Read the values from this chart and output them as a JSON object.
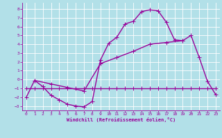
{
  "xlabel": "Windchill (Refroidissement éolien,°C)",
  "bg_color": "#b2e0e8",
  "grid_color": "#ffffff",
  "line_color": "#990099",
  "xlim": [
    -0.5,
    23.5
  ],
  "ylim": [
    -3.5,
    8.7
  ],
  "xticks": [
    0,
    1,
    2,
    3,
    4,
    5,
    6,
    7,
    8,
    9,
    10,
    11,
    12,
    13,
    14,
    15,
    16,
    17,
    18,
    19,
    20,
    21,
    22,
    23
  ],
  "yticks": [
    -3,
    -2,
    -1,
    0,
    1,
    2,
    3,
    4,
    5,
    6,
    7,
    8
  ],
  "curve1_x": [
    0,
    1,
    2,
    3,
    4,
    5,
    6,
    7,
    8,
    9,
    10,
    11,
    12,
    13,
    14,
    15,
    16,
    17,
    18,
    19,
    20,
    21,
    22,
    23
  ],
  "curve1_y": [
    -2.0,
    -0.1,
    -0.8,
    -1.8,
    -2.3,
    -2.8,
    -3.0,
    -3.1,
    -2.5,
    2.2,
    4.1,
    4.8,
    6.3,
    6.6,
    7.7,
    7.9,
    7.8,
    6.5,
    4.5,
    4.4,
    5.0,
    2.5,
    -0.2,
    -1.7
  ],
  "flat_line_x": [
    0,
    1,
    2,
    3,
    4,
    5,
    6,
    7,
    8,
    9,
    10,
    11,
    12,
    13,
    14,
    15,
    16,
    17,
    18,
    19,
    20,
    21,
    22,
    23
  ],
  "flat_line_y": [
    -1.0,
    -1.0,
    -1.0,
    -1.0,
    -1.0,
    -1.0,
    -1.0,
    -1.0,
    -1.0,
    -1.0,
    -1.0,
    -1.0,
    -1.0,
    -1.0,
    -1.0,
    -1.0,
    -1.0,
    -1.0,
    -1.0,
    -1.0,
    -1.0,
    -1.0,
    -1.0,
    -1.0
  ],
  "diag_line_x": [
    1,
    3,
    5,
    7,
    9,
    11,
    13,
    15,
    17,
    19
  ],
  "diag_line_y": [
    -0.1,
    -0.5,
    -0.9,
    -1.3,
    1.8,
    2.5,
    3.2,
    4.0,
    4.2,
    4.4
  ],
  "marker": "+",
  "markersize": 4,
  "linewidth": 1.0
}
